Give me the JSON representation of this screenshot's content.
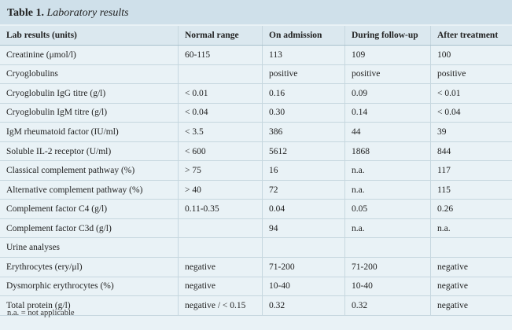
{
  "title": {
    "lead": "Table 1.",
    "rest": "Laboratory results"
  },
  "columns": [
    "Lab results (units)",
    "Normal range",
    "On admission",
    "During follow-up",
    "After treatment"
  ],
  "rows": [
    [
      "Creatinine (μmol/l)",
      "60-115",
      "113",
      "109",
      "100"
    ],
    [
      "Cryoglobulins",
      "",
      "positive",
      "positive",
      "positive"
    ],
    [
      "Cryoglobulin IgG titre (g/l)",
      "< 0.01",
      "0.16",
      "0.09",
      "< 0.01"
    ],
    [
      "Cryoglobulin IgM titre (g/l)",
      "< 0.04",
      "0.30",
      "0.14",
      "< 0.04"
    ],
    [
      "IgM rheumatoid factor (IU/ml)",
      "< 3.5",
      "386",
      "44",
      "39"
    ],
    [
      "Soluble IL-2 receptor (U/ml)",
      "< 600",
      "5612",
      "1868",
      "844"
    ],
    [
      "Classical complement pathway (%)",
      "> 75",
      "16",
      "n.a.",
      "117"
    ],
    [
      "Alternative complement pathway (%)",
      "> 40",
      "72",
      "n.a.",
      "115"
    ],
    [
      "Complement factor C4 (g/l)",
      "0.11-0.35",
      "0.04",
      "0.05",
      "0.26"
    ],
    [
      "Complement factor C3d (g/l)",
      "",
      "94",
      "n.a.",
      "n.a."
    ],
    [
      "Urine analyses",
      "",
      "",
      "",
      ""
    ],
    [
      "Erythrocytes (ery/μl)",
      "negative",
      "71-200",
      "71-200",
      "negative"
    ],
    [
      "Dysmorphic erythrocytes (%)",
      "negative",
      "10-40",
      "10-40",
      "negative"
    ],
    [
      "Total protein (g/l)",
      "negative / < 0.15",
      "0.32",
      "0.32",
      "negative"
    ]
  ],
  "footnote": "n.a. = not applicable"
}
